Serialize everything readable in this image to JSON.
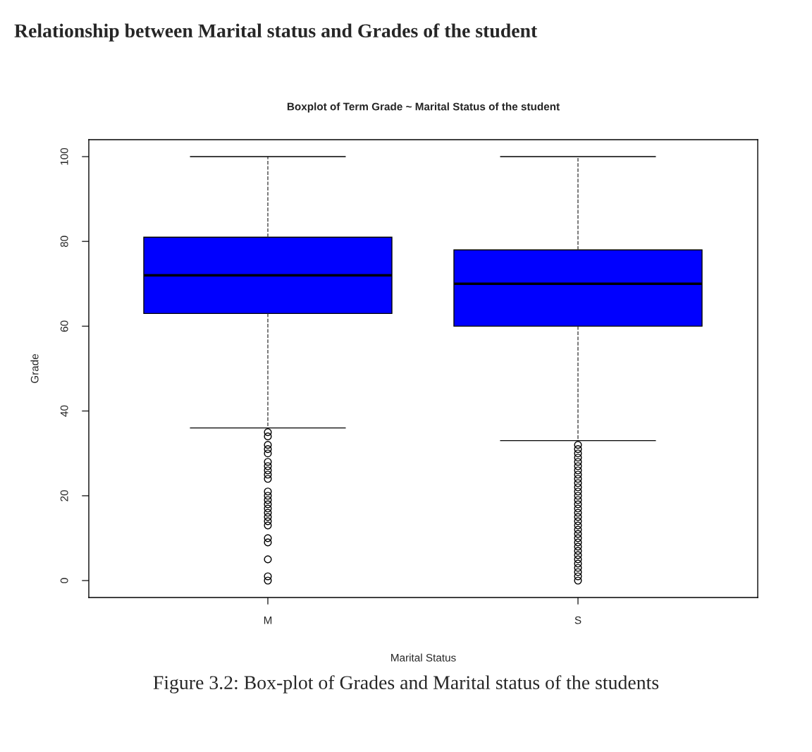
{
  "chart_data": {
    "type": "box",
    "title": "Relationship between Marital status and Grades of the student",
    "subtitle": "Boxplot of Term Grade ~ Marital Status of the student",
    "xlabel": "Marital Status",
    "ylabel": "Grade",
    "categories": [
      "M",
      "S"
    ],
    "color": "#0000ff",
    "boxes": [
      {
        "low": 36,
        "q1": 63,
        "median": 72,
        "q3": 81,
        "high": 100,
        "outliers": [
          35,
          34,
          32,
          31,
          30,
          28,
          27,
          26,
          25,
          24,
          21,
          20,
          19,
          18,
          17,
          16,
          15,
          14,
          13,
          10,
          9,
          5,
          1,
          0
        ]
      },
      {
        "low": 33,
        "q1": 60,
        "median": 70,
        "q3": 78,
        "high": 100,
        "outliers": [
          32,
          31,
          30,
          29,
          28,
          27,
          26,
          25,
          24,
          23,
          22,
          21,
          20,
          19,
          18,
          17,
          16,
          15,
          14,
          13,
          12,
          11,
          10,
          9,
          8,
          7,
          6,
          5,
          4,
          3,
          2,
          1,
          0
        ]
      }
    ],
    "ylim": [
      -4,
      104
    ],
    "yticks": [
      0,
      20,
      40,
      60,
      80,
      100
    ],
    "grid": false,
    "legend": false,
    "annotations": [
      "Figure 3.2: Box-plot of Grades and Marital status of the students"
    ]
  }
}
